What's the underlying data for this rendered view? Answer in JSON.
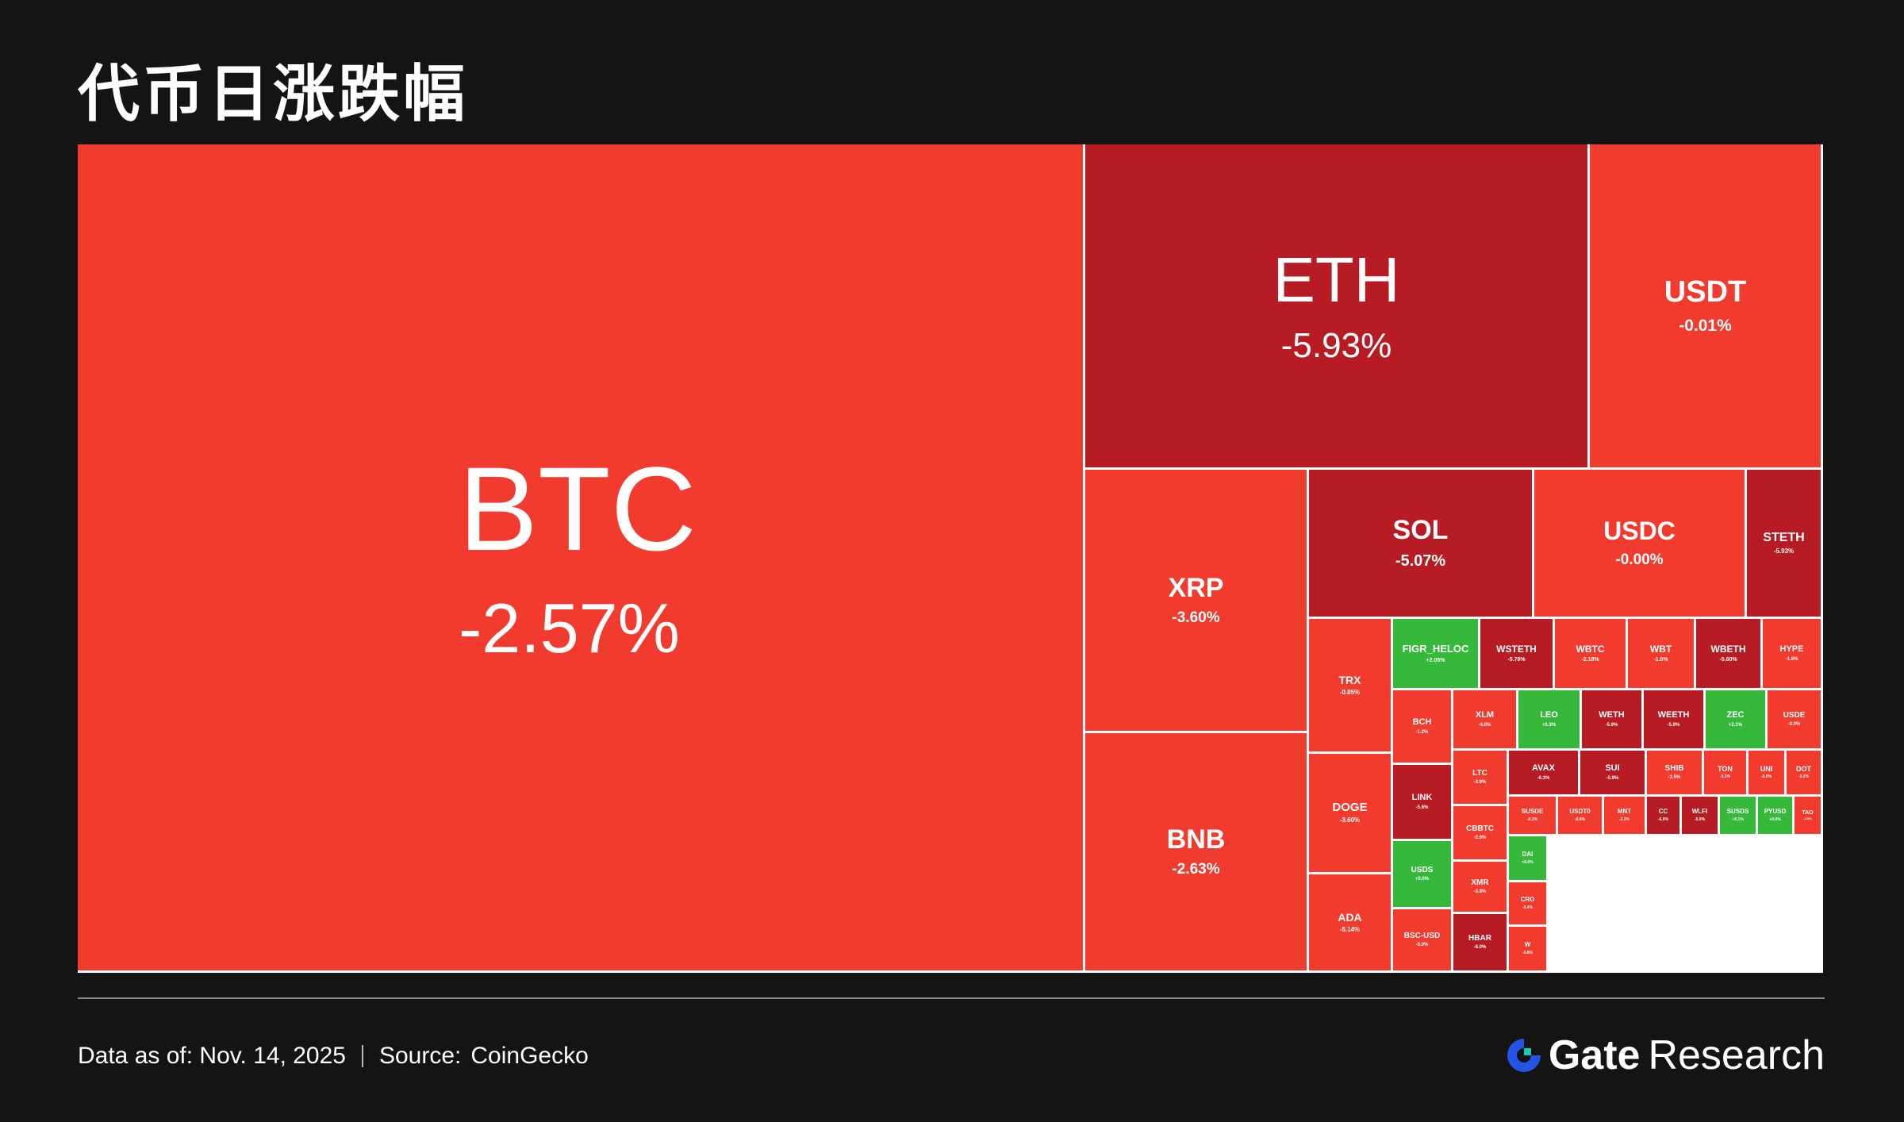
{
  "title": "代币日涨跌幅",
  "footer": {
    "date_text": "Data as of: Nov. 14, 2025",
    "source_label": "Source:",
    "source_value": "CoinGecko"
  },
  "brand": {
    "name": "Gate",
    "suffix": "Research"
  },
  "colors": {
    "down_strong": "#b71c24",
    "down": "#f03b2e",
    "up": "#36b83a",
    "up_dark": "#1e7d2a",
    "border": "#ffffff",
    "background": "#141414"
  },
  "chart_data": {
    "type": "treemap",
    "title": "代币日涨跌幅",
    "value_unit": "24h change %",
    "tiles": [
      {
        "symbol": "BTC",
        "change": "-2.57%"
      },
      {
        "symbol": "ETH",
        "change": "-5.93%"
      },
      {
        "symbol": "USDT",
        "change": "-0.01%"
      },
      {
        "symbol": "XRP",
        "change": "-3.60%"
      },
      {
        "symbol": "BNB",
        "change": "-2.63%"
      },
      {
        "symbol": "SOL",
        "change": "-5.07%"
      },
      {
        "symbol": "USDC",
        "change": "-0.00%"
      },
      {
        "symbol": "STETH",
        "change": "-5.93%"
      },
      {
        "symbol": "TRX",
        "change": "-0.85%"
      },
      {
        "symbol": "DOGE",
        "change": "-3.60%"
      },
      {
        "symbol": "ADA",
        "change": "-5.14%"
      },
      {
        "symbol": "FIGR_HELOC",
        "change": "+2.05%"
      },
      {
        "symbol": "WSTETH",
        "change": "-5.78%"
      },
      {
        "symbol": "WBTC",
        "change": "-2.18%"
      },
      {
        "symbol": "WBT",
        "change": "-1.0%"
      },
      {
        "symbol": "WBETH",
        "change": "-5.60%"
      },
      {
        "symbol": "HYPE",
        "change": "-1.6%"
      },
      {
        "symbol": "BCH",
        "change": "-1.2%"
      },
      {
        "symbol": "XLM",
        "change": "-4.0%"
      },
      {
        "symbol": "LEO",
        "change": "+0.3%"
      },
      {
        "symbol": "WETH",
        "change": "-5.9%"
      },
      {
        "symbol": "WEETH",
        "change": "-5.9%"
      },
      {
        "symbol": "ZEC",
        "change": "+2.1%"
      },
      {
        "symbol": "USDE",
        "change": "-0.0%"
      },
      {
        "symbol": "LINK",
        "change": "-5.6%"
      },
      {
        "symbol": "LTC",
        "change": "-3.9%"
      },
      {
        "symbol": "AVAX",
        "change": "-6.3%"
      },
      {
        "symbol": "SUI",
        "change": "-5.9%"
      },
      {
        "symbol": "SHIB",
        "change": "-3.5%"
      },
      {
        "symbol": "TON",
        "change": "-3.1%"
      },
      {
        "symbol": "UNI",
        "change": "-3.0%"
      },
      {
        "symbol": "DOT",
        "change": "-3.2%"
      },
      {
        "symbol": "CBBTC",
        "change": "-2.6%"
      },
      {
        "symbol": "USDS",
        "change": "+0.0%"
      },
      {
        "symbol": "XMR",
        "change": "-3.8%"
      },
      {
        "symbol": "BSC-USD",
        "change": "-0.0%"
      },
      {
        "symbol": "HBAR",
        "change": "-6.0%"
      },
      {
        "symbol": "SUSDE",
        "change": "-0.1%"
      },
      {
        "symbol": "USDT0",
        "change": "-0.0%"
      },
      {
        "symbol": "MNT",
        "change": "-3.2%"
      },
      {
        "symbol": "CC",
        "change": "-6.0%"
      },
      {
        "symbol": "WLFI",
        "change": "-5.0%"
      },
      {
        "symbol": "SUSDS",
        "change": "+0.1%"
      },
      {
        "symbol": "PYUSD",
        "change": "+0.0%"
      },
      {
        "symbol": "TAO",
        "change": "-4.0%"
      },
      {
        "symbol": "DAI",
        "change": "+0.0%"
      },
      {
        "symbol": "CRO",
        "change": "-3.4%"
      },
      {
        "symbol": "W",
        "change": "-3.8%"
      }
    ]
  }
}
